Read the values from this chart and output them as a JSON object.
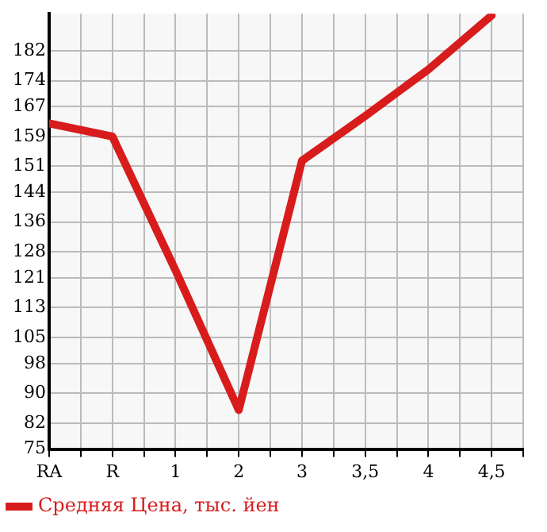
{
  "chart_data": {
    "type": "line",
    "categories": [
      "RA",
      "R",
      "1",
      "2",
      "3",
      "3,5",
      "4",
      "4,5"
    ],
    "series": [
      {
        "name": "Средняя Цена, тыс. йен",
        "color": "#d81c1c",
        "values": [
          162.5,
          159,
          123,
          85.5,
          152.5,
          164.5,
          177,
          191.5
        ]
      }
    ],
    "ylim": [
      75,
      192
    ],
    "yticks": [
      75,
      82,
      90,
      98,
      105,
      113,
      121,
      128,
      136,
      144,
      151,
      159,
      167,
      174,
      182
    ],
    "grid": true,
    "legend": "bottom left",
    "marker": "none",
    "line_style": "solid"
  }
}
